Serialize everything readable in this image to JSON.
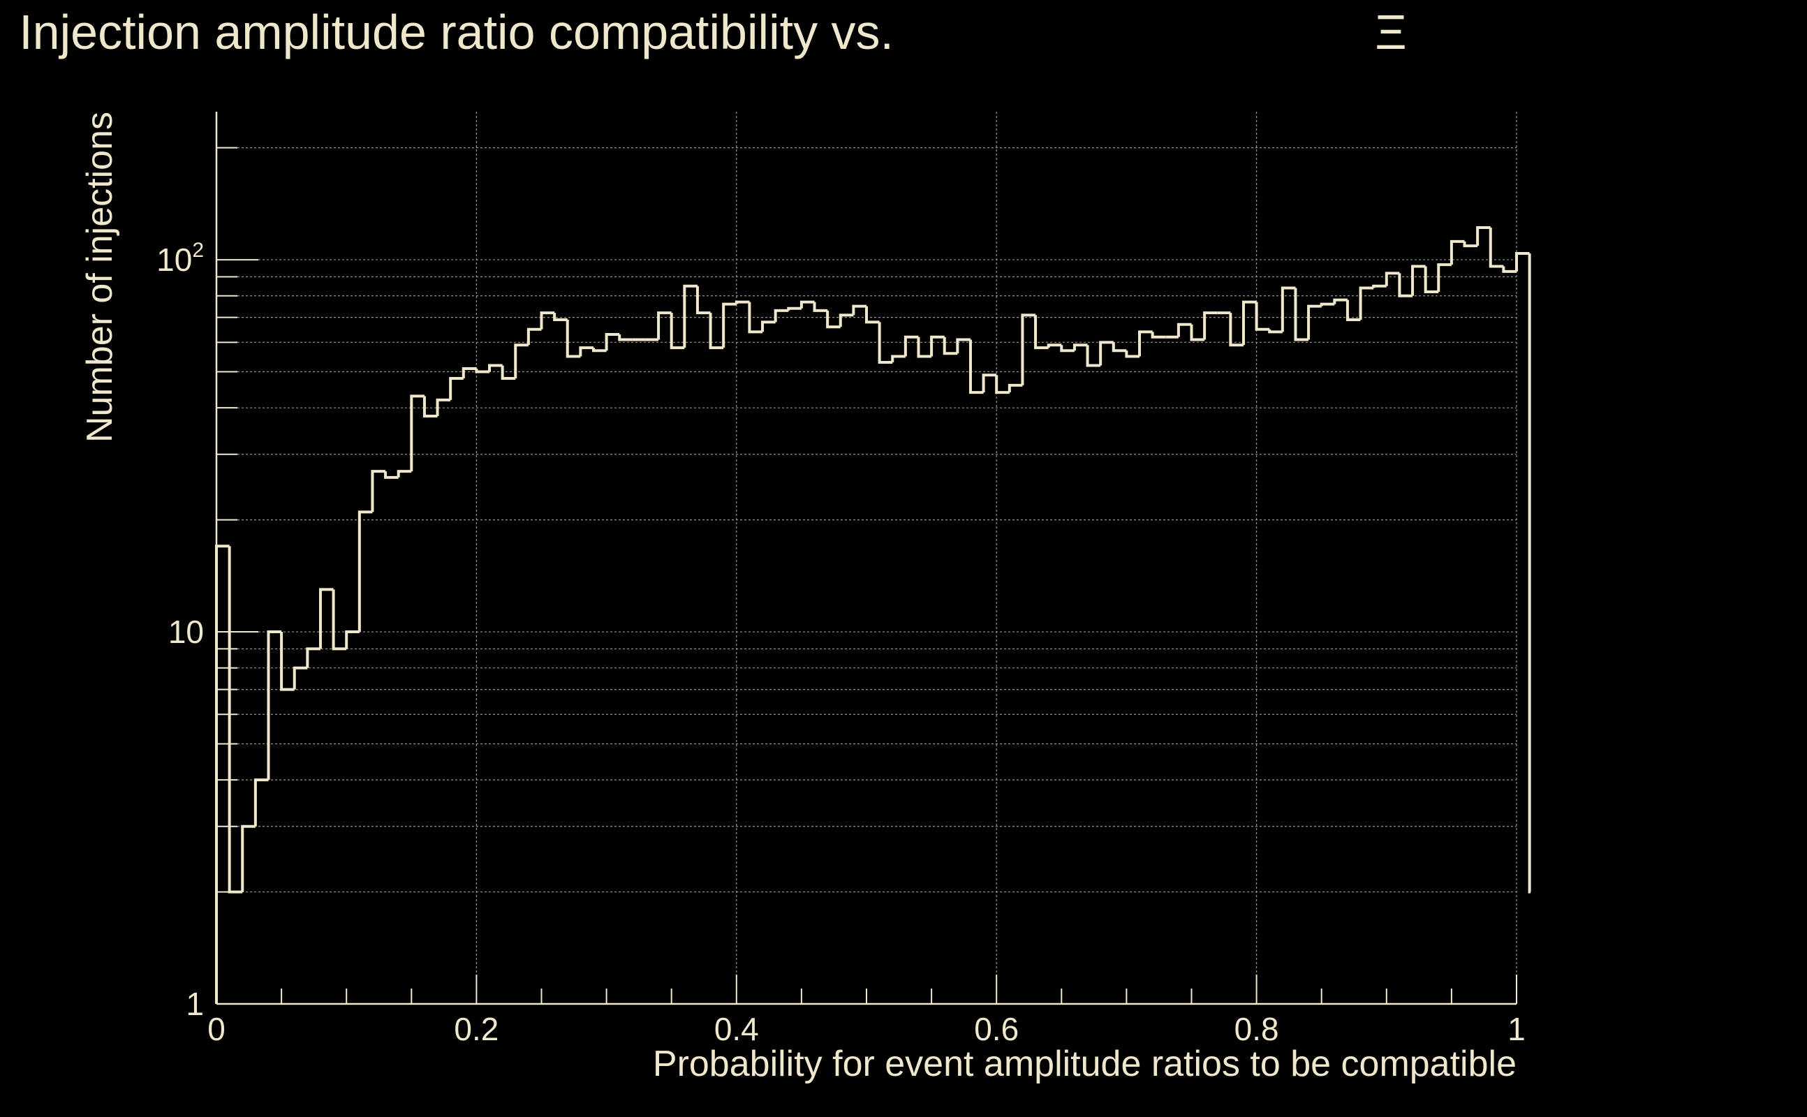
{
  "colors": {
    "background": "#000000",
    "foreground": "#f0e8cc",
    "grid": "#9a9585"
  },
  "chart_data": {
    "type": "bar",
    "style": "step-histogram",
    "title": "Injection amplitude ratio compatibility vs.",
    "title_symbol": "Ξ",
    "xlabel": "Probability for event amplitude ratios to be compatible",
    "ylabel": "Number of injections",
    "xlim": [
      0,
      1
    ],
    "ylim": [
      1,
      250
    ],
    "y_scale": "log",
    "grid": true,
    "x_ticks": [
      {
        "value": 0,
        "label": "0"
      },
      {
        "value": 0.2,
        "label": "0.2"
      },
      {
        "value": 0.4,
        "label": "0.4"
      },
      {
        "value": 0.6,
        "label": "0.6"
      },
      {
        "value": 0.8,
        "label": "0.8"
      },
      {
        "value": 1,
        "label": "1"
      }
    ],
    "y_ticks": [
      {
        "value": 1,
        "label": "1",
        "exp": ""
      },
      {
        "value": 10,
        "label": "10",
        "exp": ""
      },
      {
        "value": 100,
        "label": "10",
        "exp": "2"
      }
    ],
    "bin_width": 0.01,
    "values": [
      17,
      2,
      3,
      4,
      10,
      7,
      8,
      9,
      13,
      9,
      10,
      21,
      27,
      26,
      27,
      43,
      38,
      42,
      48,
      51,
      50,
      52,
      48,
      59,
      65,
      72,
      69,
      55,
      58,
      57,
      63,
      61,
      61,
      61,
      72,
      58,
      85,
      72,
      58,
      76,
      77,
      64,
      68,
      73,
      74,
      77,
      73,
      66,
      71,
      75,
      68,
      53,
      55,
      62,
      55,
      62,
      56,
      61,
      44,
      49,
      44,
      46,
      71,
      58,
      59,
      57,
      59,
      52,
      60,
      57,
      55,
      64,
      62,
      62,
      67,
      61,
      72,
      72,
      59,
      77,
      65,
      64,
      84,
      61,
      75,
      76,
      78,
      69,
      84,
      85,
      92,
      80,
      96,
      82,
      97,
      112,
      109,
      122,
      96,
      93,
      104,
      2
    ]
  }
}
